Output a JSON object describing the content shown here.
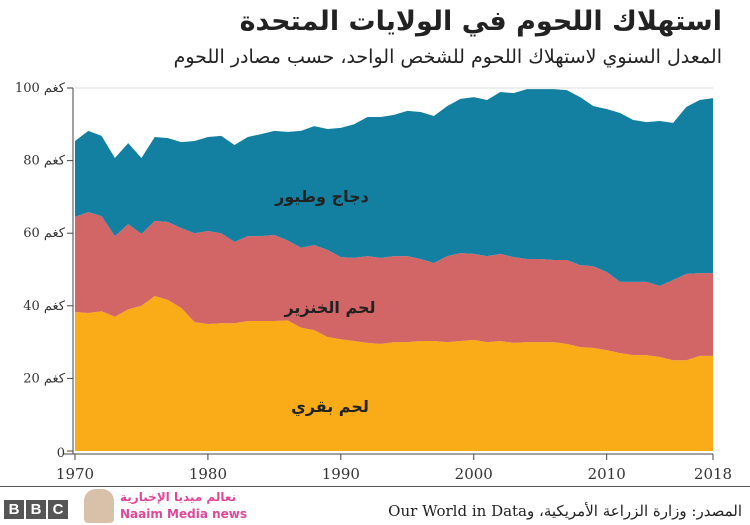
{
  "header": {
    "title": "استهلاك اللحوم في الولايات المتحدة",
    "subtitle": "المعدل السنوي لاستهلاك اللحوم للشخص الواحد، حسب مصادر اللحوم"
  },
  "chart_data": {
    "type": "area",
    "stacked": true,
    "title": "استهلاك اللحوم في الولايات المتحدة",
    "subtitle": "المعدل السنوي لاستهلاك اللحوم للشخص الواحد، حسب مصادر اللحوم",
    "xlim": [
      1970,
      2018
    ],
    "ylim": [
      0,
      100
    ],
    "x_ticks": [
      "1970",
      "1980",
      "1990",
      "2000",
      "2010",
      "2018"
    ],
    "y_ticks": [
      "0",
      "20 كغم",
      "40 كغم",
      "60 كغم",
      "80 كغم",
      "100 كغم"
    ],
    "y_tick_values": [
      0,
      20,
      40,
      60,
      80,
      100
    ],
    "legend": "inline-labels",
    "grid": "top line only",
    "x_start_year": 1970,
    "series": [
      {
        "name": "لحم بقري",
        "color": "#FAAB18",
        "values": [
          38.3,
          38,
          38.5,
          37,
          39,
          40,
          42.7,
          41.6,
          39.4,
          35.5,
          35,
          35.2,
          35.2,
          35.8,
          35.8,
          35.8,
          36,
          34,
          33.3,
          31.4,
          30.8,
          30.3,
          29.8,
          29.5,
          30,
          30,
          30.3,
          30.3,
          30,
          30.3,
          30.6,
          30,
          30.3,
          29.8,
          30,
          30,
          30,
          29.5,
          28.6,
          28.4,
          27.8,
          27,
          26.4,
          26.4,
          25.9,
          25,
          25,
          26.2,
          26.2
        ]
      },
      {
        "name": "لحم الخنزير",
        "color": "#D26565",
        "values": [
          26.2,
          27.8,
          26.2,
          22.2,
          23.5,
          19.8,
          20.7,
          21.5,
          22.0,
          24.5,
          25.6,
          24.8,
          22.4,
          23.4,
          23.4,
          23.7,
          22,
          22,
          23.4,
          24,
          22.6,
          22.9,
          23.9,
          23.7,
          23.7,
          23.7,
          22.6,
          21.5,
          23.7,
          24.2,
          23.7,
          23.7,
          24,
          23.6,
          22.9,
          22.9,
          22.6,
          23.1,
          22.6,
          22.5,
          21.5,
          19.6,
          20.2,
          20.2,
          19.6,
          22.1,
          23.8,
          22.8,
          22.8
        ]
      },
      {
        "name": "دجاج وطيور",
        "color": "#1380A1",
        "values": [
          20.9,
          22.4,
          22.1,
          21.5,
          22.3,
          20.9,
          23.1,
          23.1,
          23.7,
          25.4,
          25.9,
          26.8,
          26.7,
          27.3,
          28.1,
          28.7,
          29.9,
          32.2,
          32.8,
          33.3,
          35.6,
          36.8,
          38.3,
          38.8,
          38.9,
          40,
          40.5,
          40.5,
          41.3,
          42.5,
          43.2,
          43,
          44.6,
          45.2,
          46.8,
          46.8,
          47.1,
          46.8,
          46.3,
          44.1,
          44.9,
          46.5,
          44.6,
          44,
          45.4,
          43.3,
          46,
          47.7,
          48.2
        ]
      }
    ]
  },
  "footer": {
    "logo": "BBC",
    "logo_letters": [
      "B",
      "B",
      "C"
    ],
    "source": "المصدر: وزارة الزراعة الأمريكية، وOur World in Data",
    "watermark_ar": "نعالم ميديا الإخبارية",
    "watermark_en": "Naaim Media news"
  }
}
